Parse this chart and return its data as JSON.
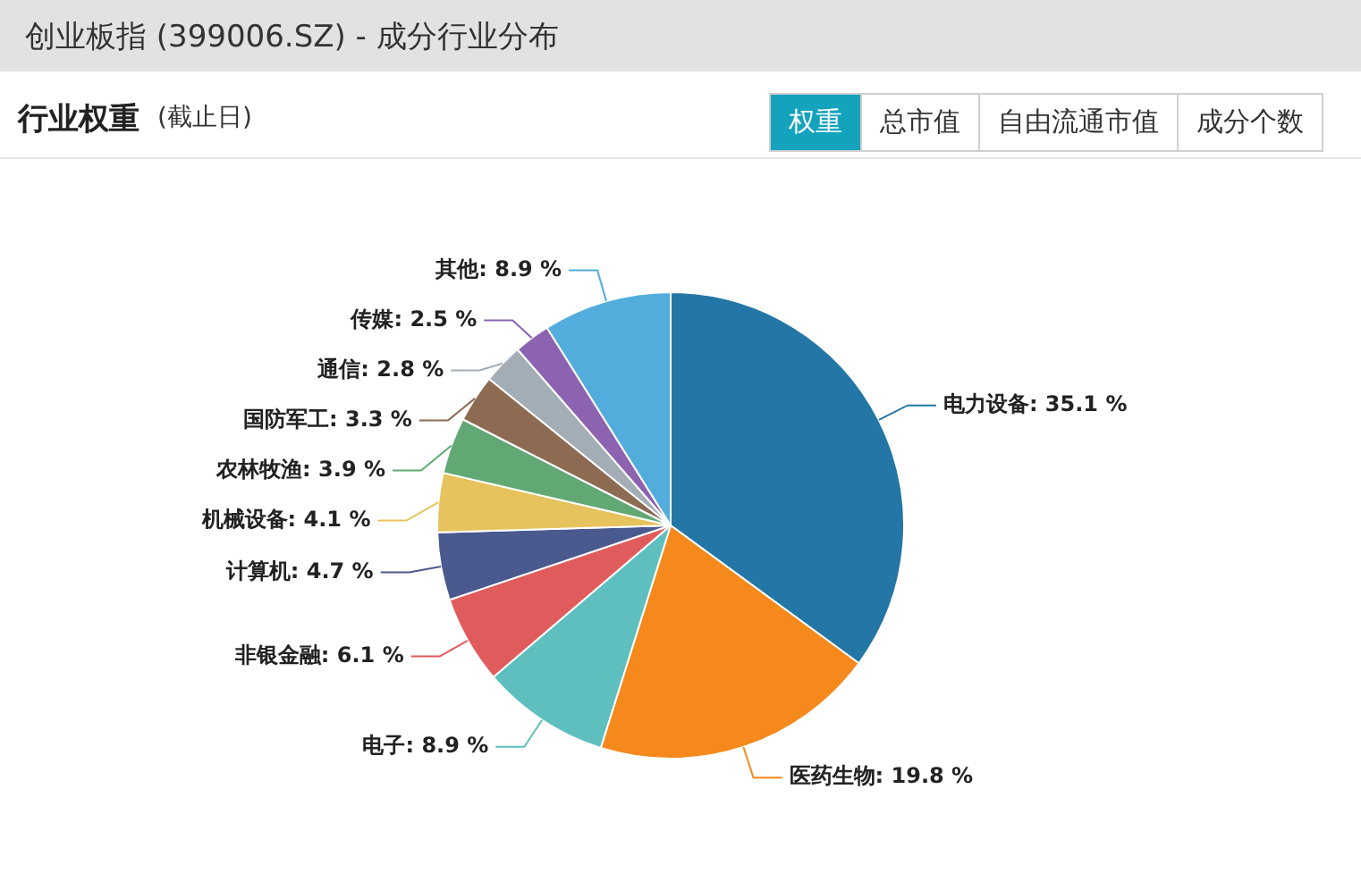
{
  "chart_data": {
    "type": "pie",
    "title": "创业板指 (399006.SZ) - 成分行业分布",
    "subtitle": "行业权重",
    "annotations": [
      "(截止日)",
      "权重",
      "总市值",
      "自由流通市值",
      "成分个数"
    ],
    "categories": [
      "电力设备",
      "医药生物",
      "电子",
      "非银金融",
      "计算机",
      "机械设备",
      "农林牧渔",
      "国防军工",
      "通信",
      "传媒",
      "其他"
    ],
    "values": [
      35.1,
      19.8,
      8.9,
      6.1,
      4.7,
      4.1,
      3.9,
      3.3,
      2.8,
      2.5,
      8.9
    ],
    "value_labels": [
      "35.1 %",
      "19.8 %",
      "8.9 %",
      "6.1 %",
      "4.7 %",
      "4.1 %",
      "3.9 %",
      "3.3 %",
      "2.8 %",
      "2.5 %",
      "8.9 %"
    ],
    "colors": [
      "#2376a5",
      "#f5891c",
      "#5fbfbf",
      "#e05c5c",
      "#4b5a8e",
      "#e6c35c",
      "#62a874",
      "#8c6b52",
      "#a3adb5",
      "#8c63b0",
      "#52acdc"
    ],
    "legend": false
  }
}
